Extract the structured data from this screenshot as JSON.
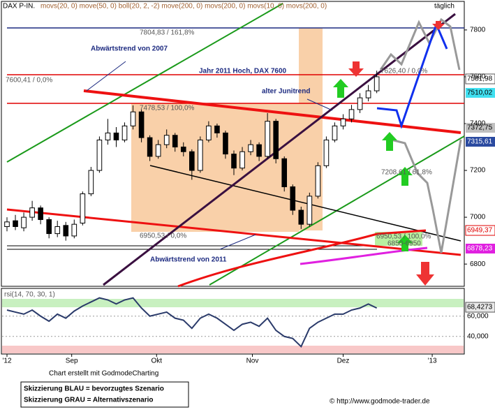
{
  "chart_data": {
    "type": "candlestick",
    "title": "DAX P-IN.",
    "indicators": "movs(20, 0) move(50, 0) boll(20, 2, -2) move(200, 0) movs(200, 0) movs(10, 0) movs(200, 0)",
    "timeframe": "täglich",
    "open": [
      6960,
      6985,
      6955,
      7000,
      7040,
      6990,
      6930,
      6965,
      6920,
      6975,
      7100,
      7200,
      7330,
      7360,
      7330,
      7390,
      7450,
      7340,
      7260,
      7310,
      7350,
      7300,
      7280,
      7200,
      7330,
      7390,
      7360,
      7270,
      7210,
      7280,
      7310,
      7260,
      7410,
      7250,
      7130,
      7030,
      6970,
      7090,
      7220,
      7330,
      7390,
      7420,
      7460,
      7510,
      7540
    ],
    "high": [
      7000,
      7010,
      7020,
      7070,
      7050,
      7000,
      6985,
      6980,
      6990,
      7110,
      7215,
      7345,
      7420,
      7385,
      7405,
      7478,
      7460,
      7350,
      7330,
      7375,
      7360,
      7320,
      7290,
      7345,
      7410,
      7400,
      7370,
      7285,
      7300,
      7330,
      7320,
      7445,
      7420,
      7260,
      7140,
      7045,
      7105,
      7235,
      7345,
      7405,
      7440,
      7480,
      7530,
      7565,
      7626
    ],
    "low": [
      6940,
      6945,
      6940,
      6985,
      6970,
      6910,
      6915,
      6900,
      6910,
      6965,
      7090,
      7190,
      7310,
      7300,
      7320,
      7375,
      7320,
      7240,
      7250,
      7295,
      7280,
      7260,
      7160,
      7190,
      7320,
      7340,
      7250,
      7180,
      7200,
      7265,
      7240,
      7250,
      7230,
      7110,
      7010,
      6950,
      6960,
      7080,
      7210,
      7320,
      7375,
      7405,
      7445,
      7495,
      7530
    ],
    "close": [
      6980,
      6960,
      7000,
      7040,
      6990,
      6930,
      6960,
      6920,
      6970,
      7100,
      7200,
      7330,
      7360,
      7330,
      7390,
      7450,
      7340,
      7260,
      7310,
      7350,
      7300,
      7280,
      7200,
      7330,
      7390,
      7360,
      7270,
      7210,
      7280,
      7310,
      7260,
      7410,
      7250,
      7130,
      7030,
      6970,
      7090,
      7220,
      7330,
      7390,
      7420,
      7460,
      7510,
      7540,
      7600
    ],
    "up_color": "#ffffff",
    "down_color": "#000000",
    "ylim": [
      6705,
      7913
    ],
    "yticks": [
      6800,
      7000,
      7200,
      7400,
      7600,
      7800
    ],
    "xlim": [
      0,
      54
    ],
    "xticks": [
      {
        "value": 0,
        "label": "'12"
      },
      {
        "value": 7.7,
        "label": "Sep"
      },
      {
        "value": 17.8,
        "label": "Okt"
      },
      {
        "value": 29.2,
        "label": "Nov"
      },
      {
        "value": 40,
        "label": "Dez"
      },
      {
        "value": 50.6,
        "label": "'13"
      }
    ],
    "annotations": [
      "Abwärtstrend von 2007",
      "Jahr 2011 Hoch, DAX 7600",
      "alter Junitrend",
      "Abwärtstrend von 2011",
      "7804,83 / 161,8%",
      "7600,41 / 0,0%",
      "7626,40 / 0,0%",
      "7478,53 / 100,0%",
      "7208,61 / 61,8%",
      "6950,53 / 0,0%",
      "6950,53 / 100,0%",
      "6850-6950"
    ],
    "price_labels": [
      "7581,98",
      "7510,02",
      "7372,75",
      "7315,61",
      "6949,37",
      "6878,23"
    ],
    "rsi": {
      "title": "rsi(14, 70, 30, 1)",
      "last_label": "68,4273",
      "color": "#2a3a6a",
      "values": [
        66,
        64,
        62,
        66,
        60,
        55,
        62,
        58,
        65,
        70,
        74,
        78,
        76,
        72,
        76,
        78,
        68,
        60,
        62,
        64,
        58,
        56,
        48,
        58,
        62,
        58,
        52,
        46,
        52,
        54,
        50,
        58,
        46,
        40,
        38,
        30,
        48,
        54,
        58,
        62,
        62,
        66,
        68,
        72,
        68
      ],
      "ylim": [
        24,
        86
      ],
      "yticks": [
        {
          "value": 60,
          "label": "60,000"
        },
        {
          "value": 40,
          "label": "40,000"
        }
      ]
    }
  },
  "footer": {
    "credit": "Chart erstellt mit GodmodeCharting",
    "legend_blue": "Skizzierung BLAU = bevorzugtes Szenario",
    "legend_gray": "Skizzierung GRAU = Alternativszenario",
    "copyright": "© http://www.godmode-trader.de"
  }
}
